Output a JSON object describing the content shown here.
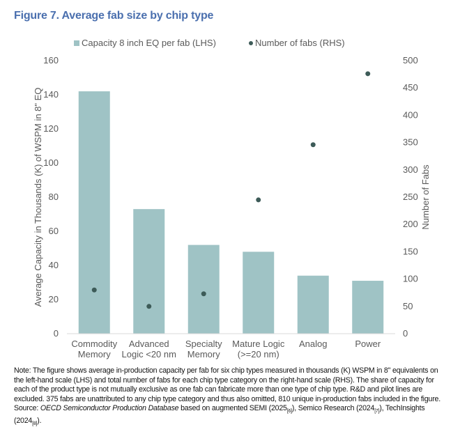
{
  "title": "Figure 7. Average fab size by chip type",
  "chart_data": {
    "type": "bar+scatter",
    "categories": [
      [
        "Commodity",
        "Memory"
      ],
      [
        "Advanced",
        "Logic <20 nm"
      ],
      [
        "Specialty",
        "Memory"
      ],
      [
        "Mature Logic",
        "(>=20 nm)"
      ],
      [
        "Analog"
      ],
      [
        "Power"
      ]
    ],
    "series": [
      {
        "name": "Capacity 8 inch EQ per fab (LHS)",
        "type": "bar",
        "axis": "left",
        "color": "#9fc3c5",
        "values": [
          142,
          73,
          52,
          48,
          34,
          31
        ]
      },
      {
        "name": "Number of fabs (RHS)",
        "type": "scatter",
        "axis": "right",
        "color": "#3d5b58",
        "values": [
          80,
          50,
          73,
          245,
          346,
          476
        ]
      }
    ],
    "ylabel_left": "Average Capacity in Thousands (K) of WSPM in 8\" EQ",
    "ylabel_right": "Number of Fabs",
    "ylim_left": [
      0,
      160
    ],
    "ylim_right": [
      0,
      500
    ],
    "yticks_left": [
      "0",
      "20",
      "40",
      "60",
      "80",
      "100",
      "120",
      "140",
      "160"
    ],
    "yticks_right": [
      "0",
      "50",
      "100",
      "150",
      "200",
      "250",
      "300",
      "350",
      "400",
      "450",
      "500"
    ],
    "grid": false,
    "legend": "top"
  },
  "note": {
    "text": "Note: The figure shows average in-production capacity per fab for six chip types measured in thousands (K) WSPM in 8'' equivalents on the left-hand scale (LHS) and total number of fabs for each chip type category on the right-hand scale (RHS). The share of capacity for each of the product type is not mutually exclusive as one fab can fabricate more than one type of chip type. R&D and pilot lines are excluded. 375 fabs are unattributed to any chip type category and thus also omitted, 810 unique in-production fabs included in the figure.",
    "source_label": "Source: ",
    "source_db": "OECD Semiconductor Production Database",
    "source_rest_1": " based on augmented SEMI (2025",
    "ref1": "[6]",
    "source_rest_2": "), Semico Research (2024",
    "ref2": "[7]",
    "source_rest_3": "), TechInsights (2024",
    "ref3": "[8]",
    "source_end": ")."
  }
}
